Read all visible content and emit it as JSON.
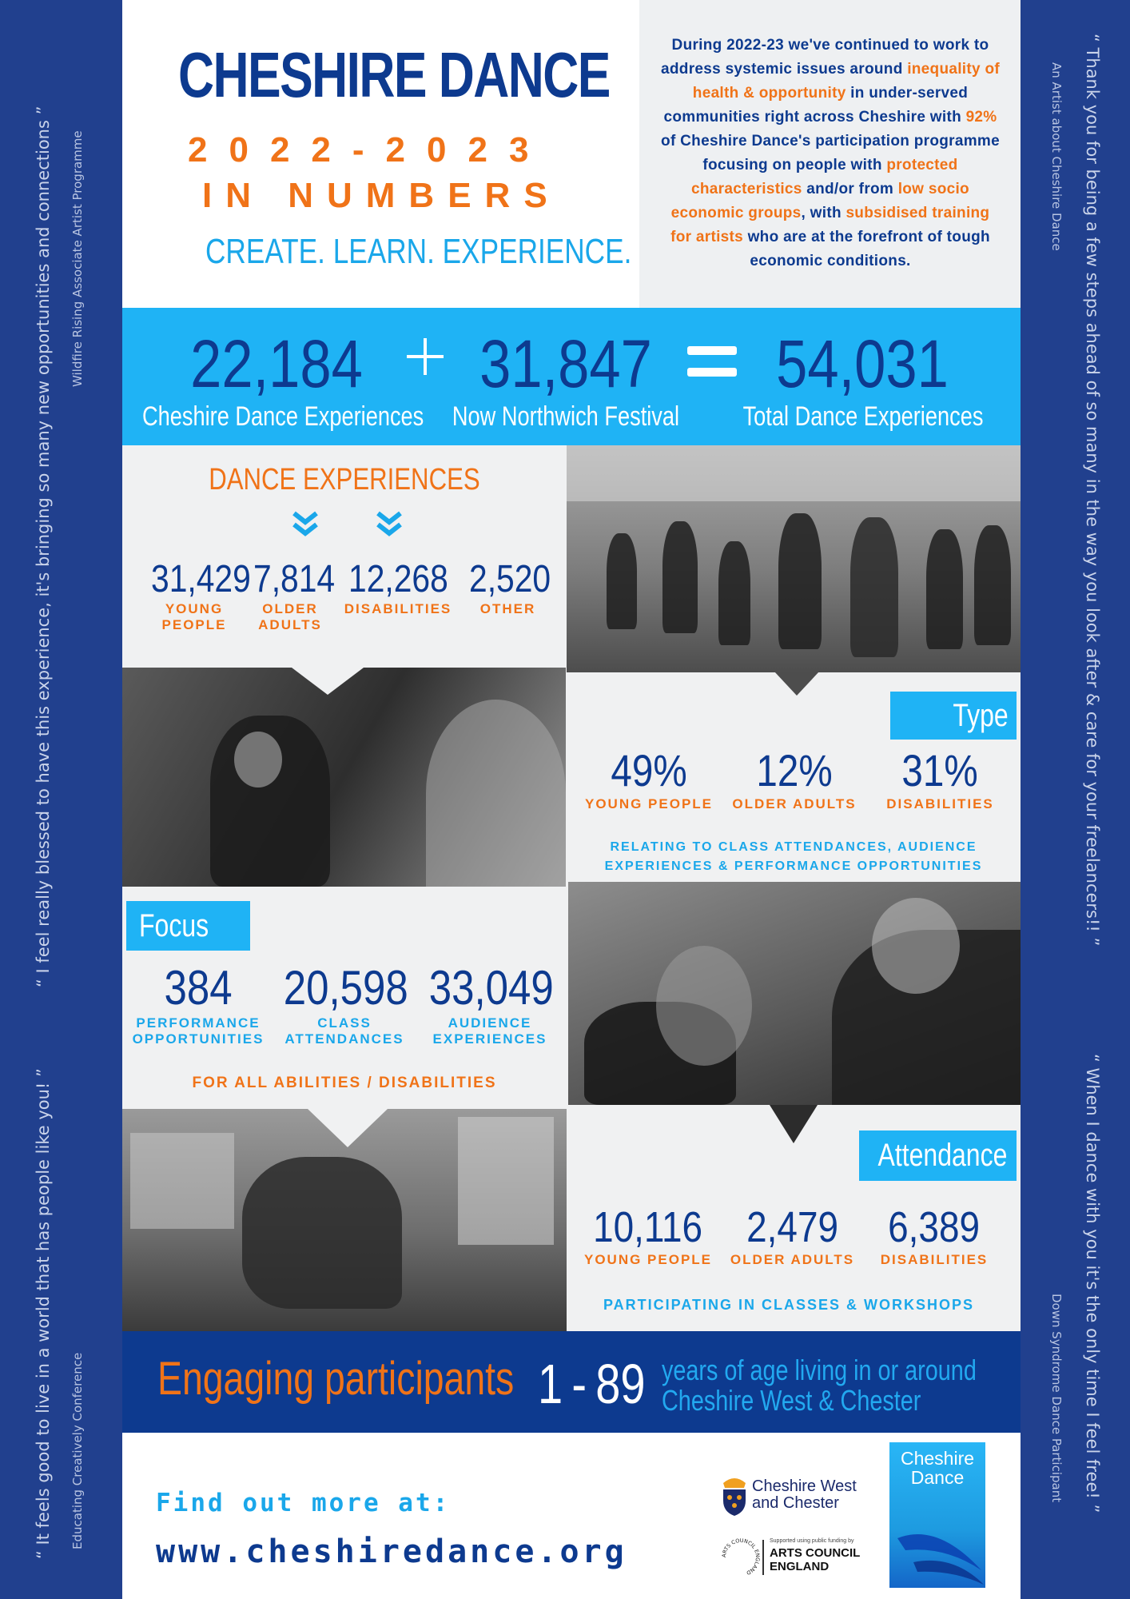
{
  "quotes": {
    "left_top": {
      "text": "“ I feel really blessed to have this experience, it's bringing so many new opportunities and connections ”",
      "source": "Wildfire Rising Associate Artist Programme"
    },
    "left_bottom": {
      "text": "“ It feels good to live in a world that has people like you! ”",
      "source": "Educating Creatively Conference"
    },
    "right_top": {
      "text": "“ Thank you for being a few steps ahead of so many in the way you look after & care for your freelancers!! ”",
      "source": "An Artist about Cheshire Dance"
    },
    "right_bottom": {
      "text": "“ When I dance with you it's the only time I feel free! ”",
      "source": "Down Syndrome Dance Participant"
    }
  },
  "header": {
    "title": "CHESHIRE DANCE",
    "years": "2022-2023",
    "subtitle": "IN NUMBERS",
    "tagline": "CREATE. LEARN. EXPERIENCE."
  },
  "intro": {
    "p1": "During 2022-23 we've continued to work to address systemic issues around ",
    "h1": "inequality of health & opportunity",
    "p2": " in under-served communities right across Cheshire with ",
    "h2": "92%",
    "p3": " of Cheshire Dance's participation programme focusing on people with ",
    "h3": "protected characteristics",
    "p4": " and/or from ",
    "h4": "low socio economic groups",
    "p5": ", with ",
    "h5": "subsidised training for artists",
    "p6": " who are at the forefront of tough economic conditions."
  },
  "totals": {
    "a": {
      "value": "22,184",
      "label": "Cheshire Dance Experiences"
    },
    "b": {
      "value": "31,847",
      "label": "Now Northwich Festival"
    },
    "c": {
      "value": "54,031",
      "label": "Total Dance Experiences"
    }
  },
  "dance_experiences": {
    "heading": "DANCE EXPERIENCES",
    "items": [
      {
        "value": "31,429",
        "label1": "YOUNG",
        "label2": "PEOPLE"
      },
      {
        "value": "7,814",
        "label1": "OLDER",
        "label2": "ADULTS"
      },
      {
        "value": "12,268",
        "label1": "DISABILITIES",
        "label2": ""
      },
      {
        "value": "2,520",
        "label1": "OTHER",
        "label2": ""
      }
    ]
  },
  "type": {
    "tag": "Type",
    "items": [
      {
        "value": "49%",
        "label": "YOUNG PEOPLE"
      },
      {
        "value": "12%",
        "label": "OLDER ADULTS"
      },
      {
        "value": "31%",
        "label": "DISABILITIES"
      }
    ],
    "caption1": "RELATING TO CLASS ATTENDANCES, AUDIENCE",
    "caption2": "EXPERIENCES & PERFORMANCE OPPORTUNITIES"
  },
  "focus": {
    "tag": "Focus",
    "items": [
      {
        "value": "384",
        "label1": "PERFORMANCE",
        "label2": "OPPORTUNITIES"
      },
      {
        "value": "20,598",
        "label1": "CLASS",
        "label2": "ATTENDANCES"
      },
      {
        "value": "33,049",
        "label1": "AUDIENCE",
        "label2": "EXPERIENCES"
      }
    ],
    "caption": "FOR ALL ABILITIES / DISABILITIES"
  },
  "attendance": {
    "tag": "Attendance",
    "items": [
      {
        "value": "10,116",
        "label": "YOUNG PEOPLE"
      },
      {
        "value": "2,479",
        "label": "OLDER ADULTS"
      },
      {
        "value": "6,389",
        "label": "DISABILITIES"
      }
    ],
    "caption": "PARTICIPATING IN CLASSES & WORKSHOPS"
  },
  "engaging": {
    "lead": "Engaging participants",
    "range_from": "1",
    "range_sep": "-",
    "range_to": "89",
    "line1": "years of age living in or around",
    "line2": "Cheshire West & Chester"
  },
  "footer": {
    "find_out": "Find out more at:",
    "url": "www.cheshiredance.org",
    "cwac_line1": "Cheshire West",
    "cwac_line2": "and Chester",
    "ace_small": "Supported using public funding by",
    "ace_line1": "ARTS COUNCIL",
    "ace_line2": "ENGLAND",
    "ace_ring": "ARTS COUNCIL ENGLAND",
    "logo_line1": "Cheshire",
    "logo_line2": "Dance"
  },
  "colors": {
    "navy": "#0d3a8f",
    "orange": "#f07318",
    "sky": "#1aa7ea",
    "band": "#1fb3f5",
    "side": "#21408e"
  }
}
